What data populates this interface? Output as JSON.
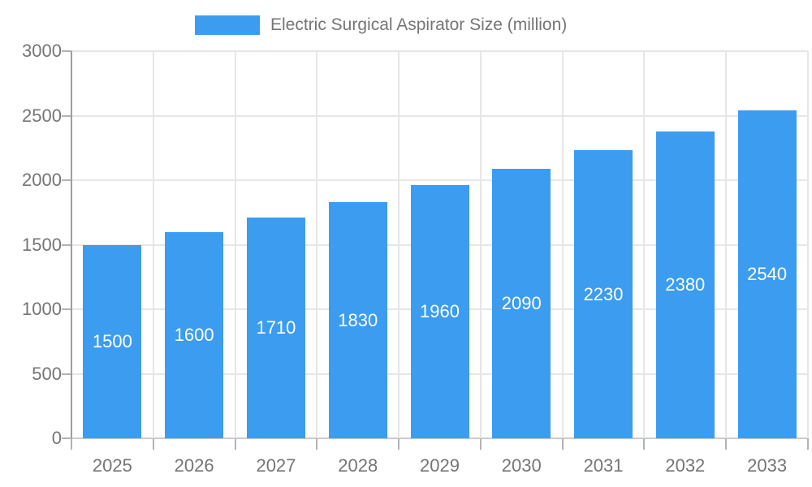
{
  "legend": {
    "label": "Electric Surgical Aspirator Size (million)"
  },
  "colors": {
    "bar": "#3C9CF0",
    "grid": "#e6e6e6",
    "axis_line": "#9e9e9e",
    "tick": "#b3b3b3",
    "baseline": "#cccccc",
    "text": "#757575",
    "bar_label": "#ffffff",
    "background": "#ffffff"
  },
  "chart_data": {
    "type": "bar",
    "title": "Electric Surgical Aspirator Size (million)",
    "series_name": "Electric Surgical Aspirator Size (million)",
    "categories": [
      "2025",
      "2026",
      "2027",
      "2028",
      "2029",
      "2030",
      "2031",
      "2032",
      "2033"
    ],
    "values": [
      1500,
      1600,
      1710,
      1830,
      1960,
      2090,
      2230,
      2380,
      2540
    ],
    "value_label_texts": [
      "1500",
      "1600",
      "1710",
      "1830",
      "1960",
      "2090",
      "2230",
      "2380",
      "2540"
    ],
    "xlabel": "",
    "ylabel": "",
    "ylim": [
      0,
      3000
    ],
    "yticks": [
      0,
      500,
      1000,
      1500,
      2000,
      2500,
      3000
    ],
    "ytick_labels": [
      "0",
      "500",
      "1000",
      "1500",
      "2000",
      "2500",
      "3000"
    ],
    "grid": true,
    "legend_position": "top-center",
    "value_label_position": "inside-center"
  }
}
